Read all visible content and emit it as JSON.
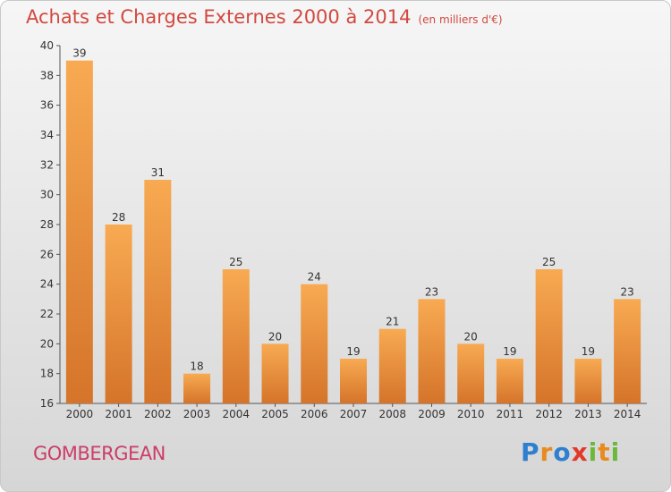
{
  "header": {
    "title": "Achats et Charges Externes 2000 à 2014",
    "unit": "(en milliers d'€)"
  },
  "footer": {
    "town": "GOMBERGEAN",
    "brand": {
      "letters": [
        "P",
        "r",
        "o",
        "x",
        "i",
        "t",
        "i"
      ],
      "colors": [
        "#2f7fd0",
        "#e98a1f",
        "#2f7fd0",
        "#e23a2a",
        "#6cb83a",
        "#e98a1f",
        "#6cb83a"
      ]
    }
  },
  "colors": {
    "bar_light": "#f7a64e",
    "bar_dark": "#d8782a",
    "title": "#d2483f",
    "town": "#cc3d68"
  },
  "chart_data": {
    "type": "bar",
    "title": "Achats et Charges Externes 2000 à 2014",
    "subtitle": "(en milliers d'€)",
    "xlabel": "",
    "ylabel": "",
    "categories": [
      "2000",
      "2001",
      "2002",
      "2003",
      "2004",
      "2005",
      "2006",
      "2007",
      "2008",
      "2009",
      "2010",
      "2011",
      "2012",
      "2013",
      "2014"
    ],
    "values": [
      39,
      28,
      31,
      18,
      25,
      20,
      24,
      19,
      21,
      23,
      20,
      19,
      25,
      19,
      23
    ],
    "ylim": [
      16,
      40
    ],
    "yticks": [
      16,
      18,
      20,
      22,
      24,
      26,
      28,
      30,
      32,
      34,
      36,
      38,
      40
    ],
    "grid": false,
    "legend": "none"
  }
}
